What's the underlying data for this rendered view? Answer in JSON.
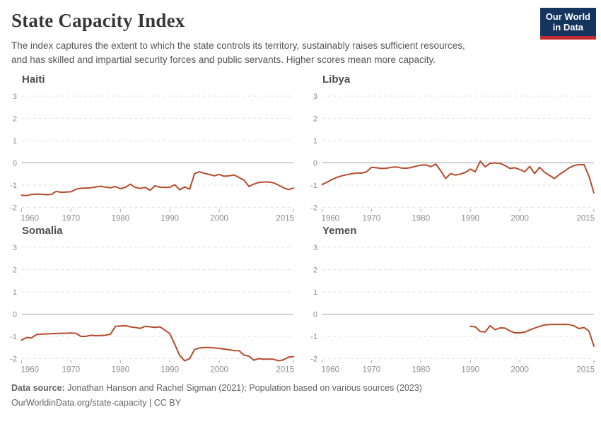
{
  "header": {
    "title": "State Capacity Index",
    "subtitle_lines": [
      "The index captures the extent to which the state controls its territory, sustainably raises sufficient resources,",
      "and has skilled and impartial security forces and public servants. Higher scores mean more capacity."
    ],
    "logo": {
      "line1": "Our World",
      "line2": "in Data"
    }
  },
  "axes": {
    "xlim": [
      1960,
      2015
    ],
    "xticks": [
      1960,
      1970,
      1980,
      1990,
      2000,
      2015
    ],
    "yticks": [
      3,
      2,
      1,
      0,
      -1,
      -2
    ]
  },
  "style": {
    "line_color": "#B64A2B",
    "grid_color": "#E2E2E2",
    "zero_line_color": "#9E9E9E",
    "tick_mark_color": "#ABABAB",
    "tick_label_color": "#8C8C8C",
    "panel_title_color": "#4E4E4E",
    "logo_bg": "#15345E",
    "logo_accent": "#C12A2E"
  },
  "chart_data": [
    {
      "type": "line",
      "title": "Haiti",
      "x_start": 1960,
      "x_end": 2015,
      "values": [
        -1.45,
        -1.47,
        -1.42,
        -1.4,
        -1.41,
        -1.43,
        -1.42,
        -1.28,
        -1.32,
        -1.31,
        -1.3,
        -1.18,
        -1.14,
        -1.13,
        -1.12,
        -1.08,
        -1.05,
        -1.09,
        -1.12,
        -1.06,
        -1.16,
        -1.1,
        -0.96,
        -1.1,
        -1.15,
        -1.1,
        -1.23,
        -1.03,
        -1.1,
        -1.1,
        -1.1,
        -0.98,
        -1.21,
        -1.08,
        -1.18,
        -0.48,
        -0.4,
        -0.47,
        -0.52,
        -0.58,
        -0.52,
        -0.6,
        -0.58,
        -0.54,
        -0.66,
        -0.77,
        -1.06,
        -0.95,
        -0.88,
        -0.86,
        -0.86,
        -0.9,
        -1.0,
        -1.12,
        -1.2,
        -1.13
      ]
    },
    {
      "type": "line",
      "title": "Libya",
      "x_start": 1960,
      "x_end": 2015,
      "values": [
        -0.97,
        -0.87,
        -0.75,
        -0.65,
        -0.58,
        -0.53,
        -0.49,
        -0.45,
        -0.46,
        -0.4,
        -0.2,
        -0.22,
        -0.25,
        -0.24,
        -0.2,
        -0.18,
        -0.23,
        -0.24,
        -0.21,
        -0.15,
        -0.1,
        -0.09,
        -0.17,
        -0.05,
        -0.35,
        -0.7,
        -0.48,
        -0.55,
        -0.5,
        -0.43,
        -0.28,
        -0.4,
        0.08,
        -0.18,
        -0.02,
        0.0,
        -0.02,
        -0.12,
        -0.25,
        -0.22,
        -0.3,
        -0.4,
        -0.16,
        -0.48,
        -0.2,
        -0.42,
        -0.56,
        -0.7,
        -0.52,
        -0.38,
        -0.22,
        -0.12,
        -0.08,
        -0.08,
        -0.6,
        -1.35
      ]
    },
    {
      "type": "line",
      "title": "Somalia",
      "x_start": 1960,
      "x_end": 2015,
      "values": [
        -1.17,
        -1.05,
        -1.07,
        -0.92,
        -0.9,
        -0.89,
        -0.88,
        -0.87,
        -0.86,
        -0.86,
        -0.85,
        -0.86,
        -1.0,
        -1.0,
        -0.95,
        -0.97,
        -0.96,
        -0.95,
        -0.9,
        -0.55,
        -0.53,
        -0.52,
        -0.57,
        -0.6,
        -0.64,
        -0.55,
        -0.57,
        -0.6,
        -0.57,
        -0.72,
        -0.88,
        -1.36,
        -1.86,
        -2.1,
        -2.0,
        -1.59,
        -1.52,
        -1.5,
        -1.5,
        -1.52,
        -1.54,
        -1.57,
        -1.6,
        -1.64,
        -1.64,
        -1.84,
        -1.89,
        -2.07,
        -2.0,
        -2.03,
        -2.02,
        -2.03,
        -2.1,
        -2.05,
        -1.93,
        -1.91
      ]
    },
    {
      "type": "line",
      "title": "Yemen",
      "x_start": 1990,
      "x_end": 2015,
      "values": [
        -0.55,
        -0.57,
        -0.78,
        -0.8,
        -0.52,
        -0.7,
        -0.62,
        -0.63,
        -0.76,
        -0.84,
        -0.84,
        -0.81,
        -0.71,
        -0.63,
        -0.55,
        -0.49,
        -0.47,
        -0.46,
        -0.47,
        -0.46,
        -0.47,
        -0.53,
        -0.65,
        -0.6,
        -0.76,
        -1.44
      ]
    }
  ],
  "footer": {
    "source_label": "Data source:",
    "source_text": "Jonathan Hanson and Rachel Sigman (2021); Population based on various sources (2023)",
    "url_line": "OurWorldinData.org/state-capacity | CC BY"
  }
}
